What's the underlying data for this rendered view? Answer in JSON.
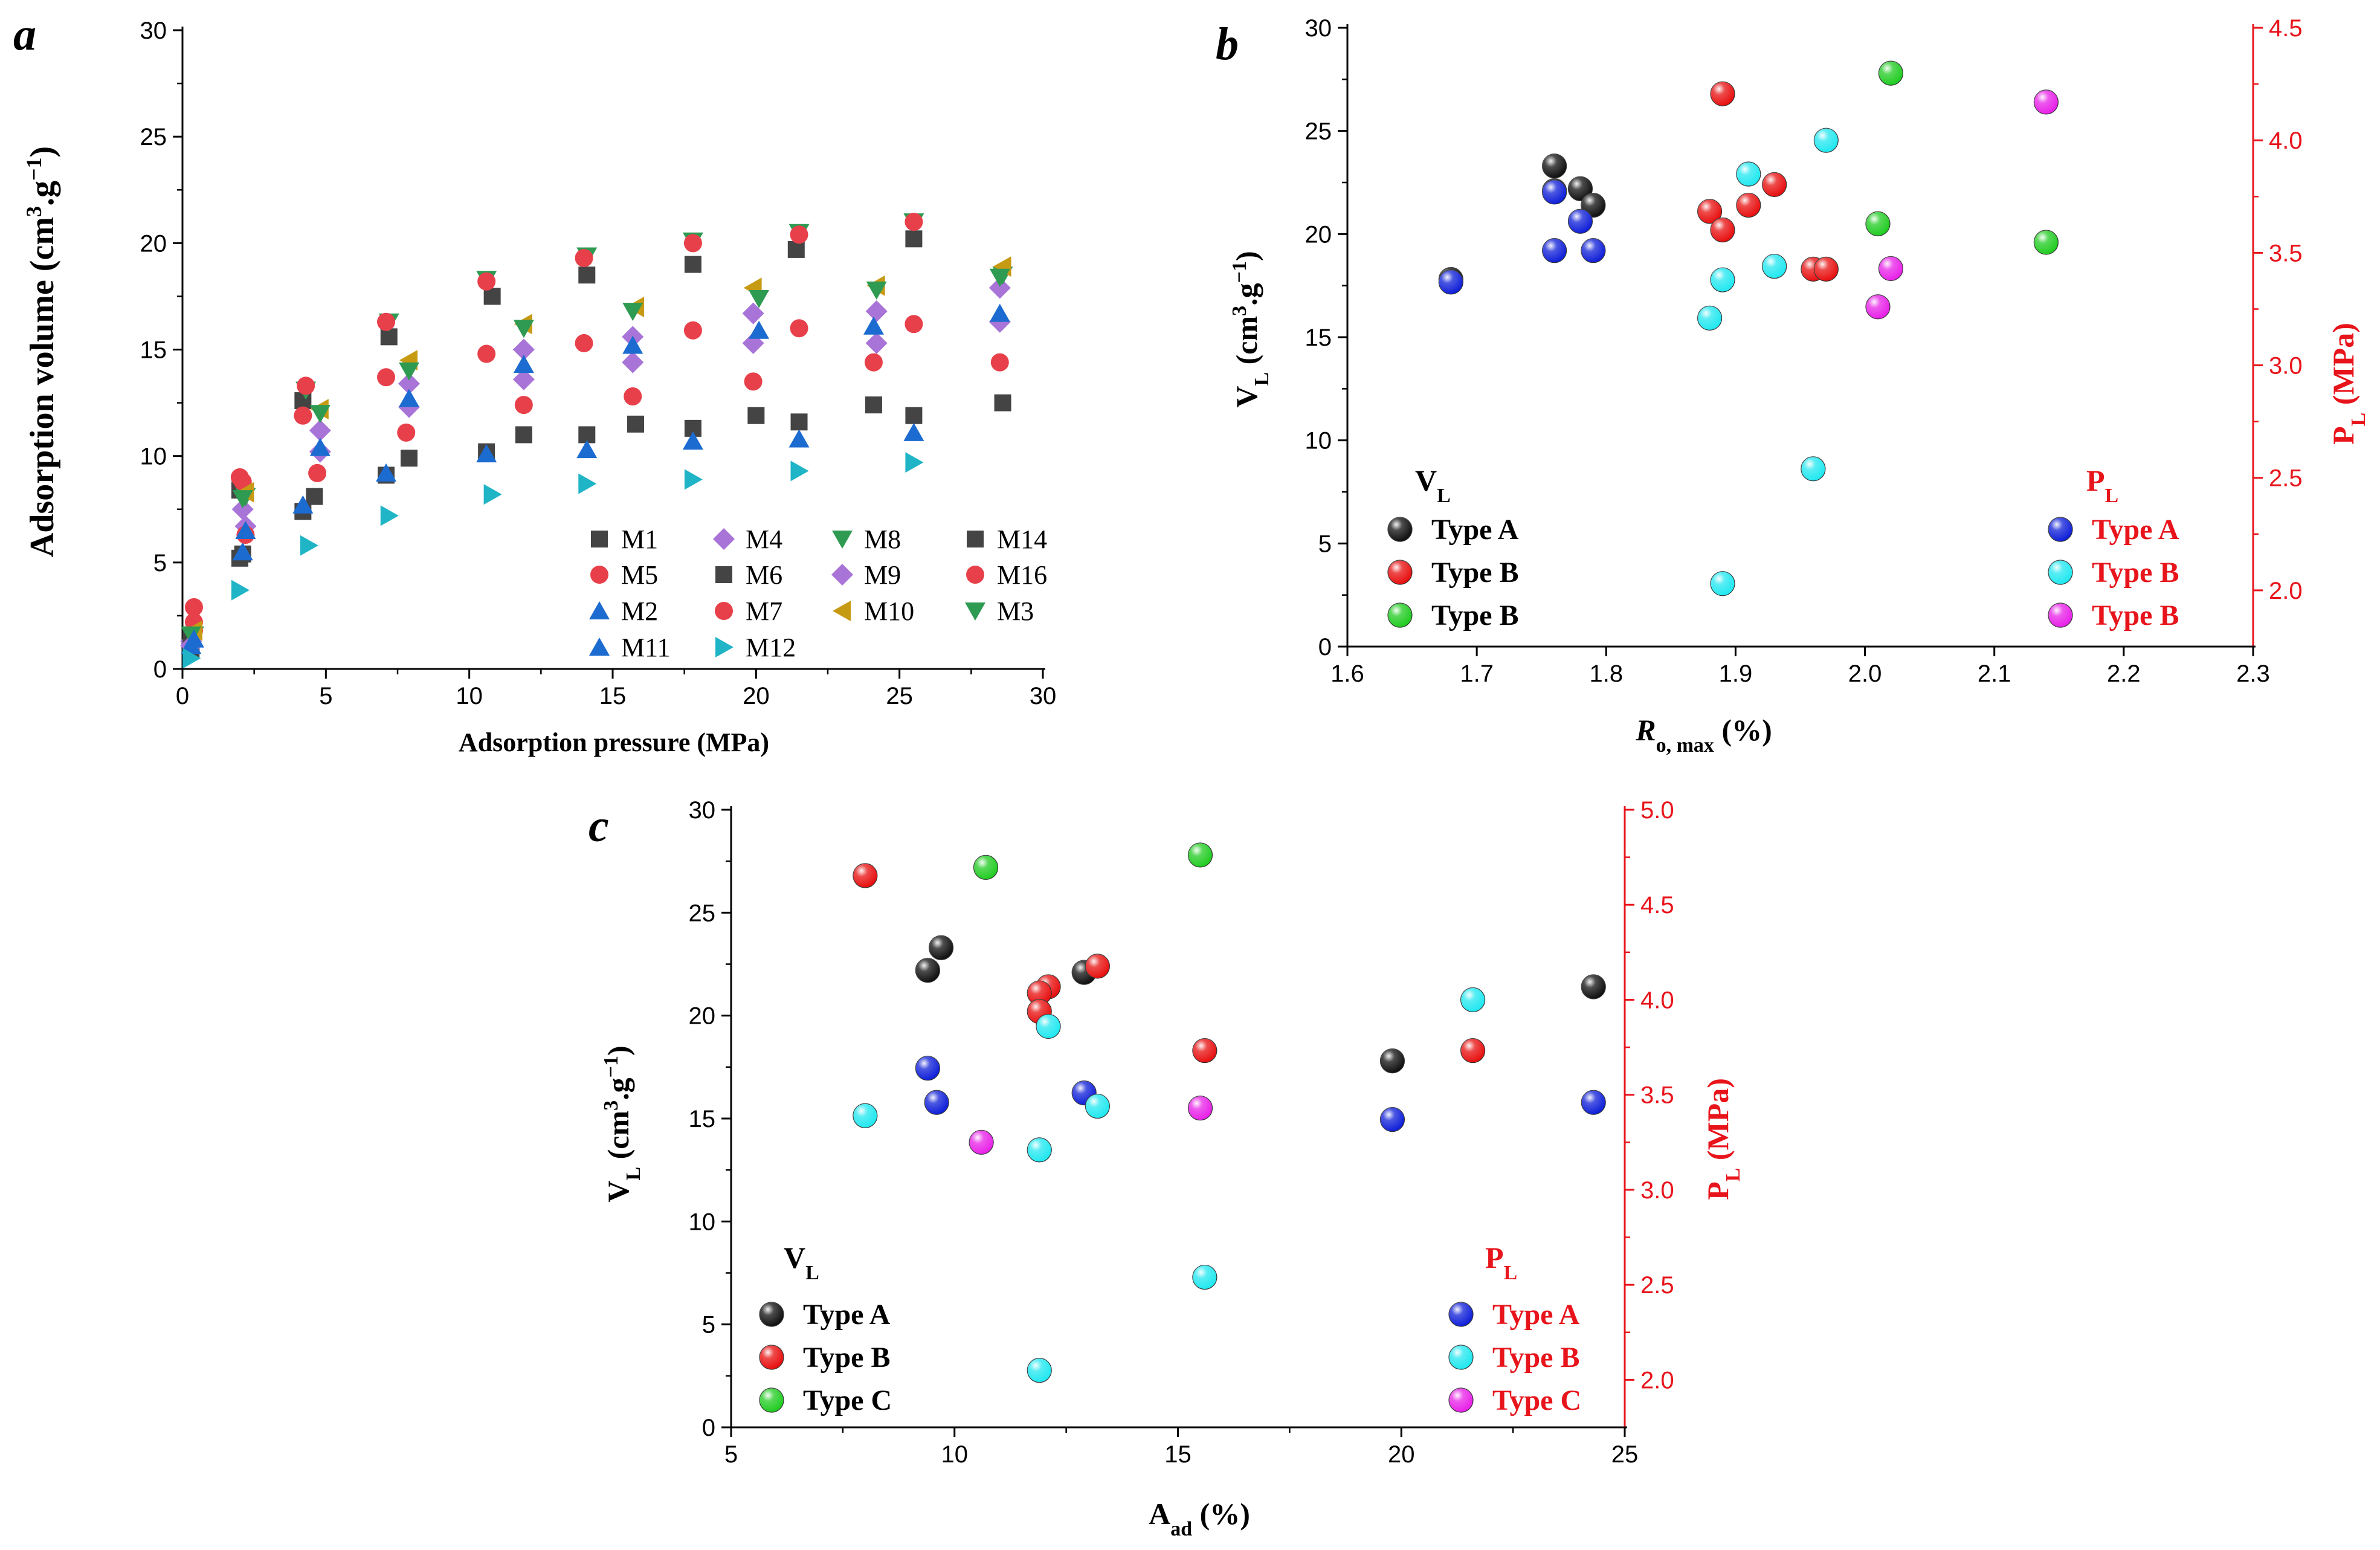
{
  "chart_data": [
    {
      "id": "a",
      "type": "scatter",
      "panel_label": "a",
      "xlabel": "Adsorption pressure (MPa)",
      "ylabel": "Adsorption volume (cm3.g−1)",
      "ylabel_parts": {
        "main": "Adsorption volume (cm",
        "sup1": "3",
        "mid": ".g",
        "sup2": "−1",
        "end": ")"
      },
      "xlim": [
        0,
        30
      ],
      "ylim": [
        0,
        30
      ],
      "xticks": [
        0,
        5,
        10,
        15,
        20,
        25,
        30
      ],
      "yticks": [
        0,
        5,
        10,
        15,
        20,
        25,
        30
      ],
      "legend_position": "bottom-right",
      "series": [
        {
          "name": "M1",
          "marker": "square",
          "color": "#444444",
          "points": [
            [
              0.3,
              1.5
            ],
            [
              2.0,
              8.4
            ],
            [
              4.2,
              12.6
            ],
            [
              7.2,
              15.6
            ],
            [
              10.8,
              17.5
            ],
            [
              14.1,
              18.5
            ],
            [
              17.8,
              19.0
            ],
            [
              21.4,
              19.7
            ],
            [
              25.5,
              20.2
            ]
          ]
        },
        {
          "name": "M4",
          "marker": "diamond",
          "color": "#a874d8",
          "points": [
            [
              0.3,
              1.3
            ],
            [
              2.1,
              7.5
            ],
            [
              4.8,
              11.2
            ],
            [
              7.9,
              13.4
            ],
            [
              11.9,
              15.0
            ],
            [
              15.7,
              15.6
            ],
            [
              19.9,
              16.7
            ],
            [
              24.2,
              16.8
            ],
            [
              28.5,
              17.9
            ]
          ]
        },
        {
          "name": "M8",
          "marker": "triangle-down",
          "color": "#2e9a52",
          "points": [
            [
              0.4,
              1.6
            ],
            [
              2.2,
              8.1
            ],
            [
              4.3,
              13.1
            ],
            [
              7.2,
              16.3
            ],
            [
              10.6,
              18.3
            ],
            [
              14.1,
              19.4
            ],
            [
              17.8,
              20.1
            ],
            [
              21.5,
              20.5
            ],
            [
              25.5,
              21.0
            ],
            [
              28.6,
              18.5
            ]
          ]
        },
        {
          "name": "M14",
          "marker": "square",
          "color": "#444444",
          "points": [
            [
              0.3,
              0.9
            ],
            [
              2.1,
              5.4
            ],
            [
              4.6,
              8.1
            ],
            [
              7.9,
              9.9
            ],
            [
              11.9,
              11.0
            ],
            [
              14.1,
              11.0
            ],
            [
              15.8,
              11.5
            ],
            [
              17.8,
              11.3
            ],
            [
              20.0,
              11.9
            ],
            [
              21.5,
              11.6
            ],
            [
              24.1,
              12.4
            ],
            [
              25.5,
              11.9
            ],
            [
              28.6,
              12.5
            ]
          ]
        },
        {
          "name": "M5",
          "marker": "circle",
          "color": "#e8404a",
          "points": [
            [
              0.4,
              2.2
            ],
            [
              2.1,
              8.8
            ],
            [
              4.3,
              13.3
            ],
            [
              7.1,
              16.3
            ],
            [
              10.6,
              18.2
            ],
            [
              14.0,
              19.3
            ],
            [
              17.8,
              20.0
            ],
            [
              21.5,
              20.4
            ],
            [
              25.5,
              21.0
            ]
          ]
        },
        {
          "name": "M6",
          "marker": "square",
          "color": "#444444",
          "points": [
            [
              0.3,
              1.2
            ],
            [
              2.0,
              5.2
            ],
            [
              4.2,
              7.4
            ],
            [
              7.1,
              9.1
            ],
            [
              10.6,
              10.2
            ]
          ]
        },
        {
          "name": "M9",
          "marker": "diamond",
          "color": "#a874d8",
          "points": [
            [
              0.3,
              1.1
            ],
            [
              2.2,
              6.7
            ],
            [
              4.8,
              10.2
            ],
            [
              7.9,
              12.3
            ],
            [
              11.9,
              13.6
            ],
            [
              15.7,
              14.4
            ],
            [
              19.9,
              15.3
            ],
            [
              24.2,
              15.3
            ],
            [
              28.5,
              16.3
            ]
          ]
        },
        {
          "name": "M16",
          "marker": "circle",
          "color": "#e8404a",
          "points": [
            [
              0.4,
              2.9
            ],
            [
              2.0,
              9.0
            ],
            [
              4.2,
              11.9
            ],
            [
              7.1,
              13.7
            ],
            [
              10.6,
              14.8
            ],
            [
              14.0,
              15.3
            ],
            [
              17.8,
              15.9
            ],
            [
              21.5,
              16.0
            ],
            [
              25.5,
              16.2
            ]
          ]
        },
        {
          "name": "M2",
          "marker": "triangle-up",
          "color": "#1c6bd0",
          "points": [
            [
              0.3,
              1.1
            ],
            [
              2.1,
              5.5
            ],
            [
              4.2,
              7.7
            ],
            [
              7.1,
              9.2
            ],
            [
              10.6,
              10.1
            ],
            [
              14.1,
              10.3
            ],
            [
              17.8,
              10.7
            ],
            [
              21.5,
              10.8
            ],
            [
              25.5,
              11.1
            ]
          ]
        },
        {
          "name": "M7",
          "marker": "circle",
          "color": "#e8404a",
          "points": [
            [
              0.4,
              1.8
            ],
            [
              2.2,
              6.3
            ],
            [
              4.7,
              9.2
            ],
            [
              7.8,
              11.1
            ],
            [
              11.9,
              12.4
            ],
            [
              15.7,
              12.8
            ],
            [
              19.9,
              13.5
            ],
            [
              24.1,
              14.4
            ],
            [
              28.5,
              14.4
            ]
          ]
        },
        {
          "name": "M10",
          "marker": "triangle-left",
          "color": "#c79a14",
          "points": [
            [
              0.4,
              1.8
            ],
            [
              2.2,
              8.3
            ],
            [
              4.8,
              12.2
            ],
            [
              7.9,
              14.5
            ],
            [
              11.9,
              16.2
            ],
            [
              15.8,
              17.0
            ],
            [
              19.9,
              17.9
            ],
            [
              24.2,
              18.0
            ],
            [
              28.6,
              18.9
            ]
          ]
        },
        {
          "name": "M3",
          "marker": "triangle-down",
          "color": "#2e9a52",
          "points": [
            [
              0.3,
              1.6
            ],
            [
              2.1,
              8.0
            ],
            [
              4.8,
              12.0
            ],
            [
              7.9,
              14.0
            ],
            [
              11.9,
              16.0
            ],
            [
              15.7,
              16.8
            ],
            [
              20.1,
              17.4
            ],
            [
              24.2,
              17.8
            ],
            [
              28.5,
              18.4
            ]
          ]
        },
        {
          "name": "M11",
          "marker": "triangle-up",
          "color": "#1c6bd0",
          "points": [
            [
              0.4,
              1.4
            ],
            [
              2.2,
              6.5
            ],
            [
              4.8,
              10.4
            ],
            [
              7.9,
              12.7
            ],
            [
              11.9,
              14.3
            ],
            [
              15.7,
              15.2
            ],
            [
              20.1,
              15.9
            ],
            [
              24.1,
              16.1
            ],
            [
              28.5,
              16.7
            ]
          ]
        },
        {
          "name": "M12",
          "marker": "triangle-right",
          "color": "#1fb4c6",
          "points": [
            [
              0.3,
              0.5
            ],
            [
              2.0,
              3.7
            ],
            [
              4.4,
              5.8
            ],
            [
              7.2,
              7.2
            ],
            [
              10.8,
              8.2
            ],
            [
              14.1,
              8.7
            ],
            [
              17.8,
              8.9
            ],
            [
              21.5,
              9.3
            ],
            [
              25.5,
              9.7
            ]
          ]
        }
      ]
    },
    {
      "id": "b",
      "type": "scatter",
      "panel_label": "b",
      "xlabel": "Ro, max (%)",
      "xlabel_parts": {
        "main": "R",
        "sub": "o, max",
        "end": " (%)"
      },
      "ylabel": "VL (cm3.g−1)",
      "ylabel_parts": {
        "main": "V",
        "sub": "L",
        "pre": " (cm",
        "sup1": "3",
        "mid": ".g",
        "sup2": "−1",
        "end": ")"
      },
      "y2label": "PL (MPa)",
      "y2label_parts": {
        "main": "P",
        "sub": "L",
        "end": " (MPa)"
      },
      "xlim": [
        1.6,
        2.3
      ],
      "ylim": [
        0,
        30
      ],
      "y2lim": [
        1.75,
        4.5
      ],
      "xticks": [
        1.6,
        1.7,
        1.8,
        1.9,
        2.0,
        2.1,
        2.2,
        2.3
      ],
      "yticks": [
        0,
        5,
        10,
        15,
        20,
        25,
        30
      ],
      "y2ticks": [
        2.0,
        2.5,
        3.0,
        3.5,
        4.0,
        4.5
      ],
      "legend_left": {
        "heading": "V",
        "heading_sub": "L",
        "position": "bottom-left"
      },
      "legend_right": {
        "heading": "P",
        "heading_sub": "L",
        "position": "bottom-right"
      },
      "series": [
        {
          "name": "Type A",
          "axis": "left",
          "color": "#111111",
          "legend": "left",
          "points": [
            [
              1.76,
              23.3
            ],
            [
              1.76,
              22.1
            ],
            [
              1.78,
              22.2
            ],
            [
              1.79,
              21.4
            ],
            [
              1.68,
              17.8
            ]
          ]
        },
        {
          "name": "Type B",
          "axis": "left",
          "color": "#e81010",
          "legend": "left",
          "points": [
            [
              1.89,
              26.8
            ],
            [
              1.88,
              21.1
            ],
            [
              1.91,
              21.4
            ],
            [
              1.93,
              22.4
            ],
            [
              1.89,
              20.2
            ],
            [
              1.96,
              18.3
            ],
            [
              1.97,
              18.3
            ]
          ]
        },
        {
          "name": "Type B",
          "axis": "left",
          "color": "#22cc22",
          "legend": "left",
          "points": [
            [
              2.02,
              27.8
            ],
            [
              2.01,
              20.5
            ],
            [
              2.14,
              19.6
            ]
          ]
        },
        {
          "name": "Type A",
          "axis": "right",
          "color": "#1020d8",
          "legend": "right",
          "points": [
            [
              1.76,
              3.77
            ],
            [
              1.78,
              3.64
            ],
            [
              1.76,
              3.51
            ],
            [
              1.79,
              3.51
            ],
            [
              1.68,
              3.37
            ]
          ]
        },
        {
          "name": "Type B",
          "axis": "right",
          "color": "#22e8f0",
          "legend": "right",
          "points": [
            [
              1.91,
              3.85
            ],
            [
              1.97,
              4.0
            ],
            [
              1.93,
              3.44
            ],
            [
              1.89,
              3.38
            ],
            [
              1.88,
              3.21
            ],
            [
              1.96,
              2.54
            ],
            [
              1.89,
              2.03
            ]
          ]
        },
        {
          "name": "Type B",
          "axis": "right",
          "color": "#e822e8",
          "legend": "right",
          "points": [
            [
              2.14,
              4.17
            ],
            [
              2.02,
              3.43
            ],
            [
              2.01,
              3.26
            ]
          ]
        }
      ]
    },
    {
      "id": "c",
      "type": "scatter",
      "panel_label": "c",
      "xlabel": "Aad (%)",
      "xlabel_parts": {
        "main": "A",
        "sub": "ad",
        "end": " (%)"
      },
      "ylabel": "VL (cm3.g−1)",
      "ylabel_parts": {
        "main": "V",
        "sub": "L",
        "pre": " (cm",
        "sup1": "3",
        "mid": ".g",
        "sup2": "−1",
        "end": ")"
      },
      "y2label": "PL (MPa)",
      "y2label_parts": {
        "main": "P",
        "sub": "L",
        "end": " (MPa)"
      },
      "xlim": [
        5,
        25
      ],
      "ylim": [
        0,
        30
      ],
      "y2lim": [
        1.75,
        5.0
      ],
      "xticks": [
        5,
        10,
        15,
        20,
        25
      ],
      "yticks": [
        0,
        5,
        10,
        15,
        20,
        25,
        30
      ],
      "y2ticks": [
        2.0,
        2.5,
        3.0,
        3.5,
        4.0,
        4.5,
        5.0
      ],
      "legend_left": {
        "heading": "V",
        "heading_sub": "L",
        "position": "bottom-left"
      },
      "legend_right": {
        "heading": "P",
        "heading_sub": "L",
        "position": "bottom-right"
      },
      "series": [
        {
          "name": "Type A",
          "axis": "left",
          "color": "#111111",
          "legend": "left",
          "points": [
            [
              9.7,
              23.3
            ],
            [
              9.4,
              22.2
            ],
            [
              12.9,
              22.1
            ],
            [
              24.3,
              21.4
            ],
            [
              19.8,
              17.8
            ]
          ]
        },
        {
          "name": "Type B",
          "axis": "left",
          "color": "#e81010",
          "legend": "left",
          "points": [
            [
              8.0,
              26.8
            ],
            [
              13.2,
              22.4
            ],
            [
              12.1,
              21.4
            ],
            [
              11.9,
              21.1
            ],
            [
              11.9,
              20.2
            ],
            [
              15.6,
              18.3
            ],
            [
              21.6,
              18.3
            ]
          ]
        },
        {
          "name": "Type C",
          "axis": "left",
          "color": "#22cc22",
          "legend": "left",
          "points": [
            [
              10.7,
              27.2
            ],
            [
              15.5,
              27.8
            ]
          ]
        },
        {
          "name": "Type A",
          "axis": "right",
          "color": "#1020d8",
          "legend": "right",
          "points": [
            [
              9.4,
              3.64
            ],
            [
              12.9,
              3.51
            ],
            [
              9.6,
              3.46
            ],
            [
              24.3,
              3.46
            ],
            [
              19.8,
              3.37
            ]
          ]
        },
        {
          "name": "Type B",
          "axis": "right",
          "color": "#22e8f0",
          "legend": "right",
          "points": [
            [
              21.6,
              4.0
            ],
            [
              12.1,
              3.86
            ],
            [
              13.2,
              3.44
            ],
            [
              8.0,
              3.39
            ],
            [
              11.9,
              3.21
            ],
            [
              15.6,
              2.54
            ],
            [
              11.9,
              2.05
            ]
          ]
        },
        {
          "name": "Type C",
          "axis": "right",
          "color": "#e822e8",
          "legend": "right",
          "points": [
            [
              10.6,
              3.25
            ],
            [
              15.5,
              3.43
            ]
          ]
        }
      ]
    }
  ]
}
